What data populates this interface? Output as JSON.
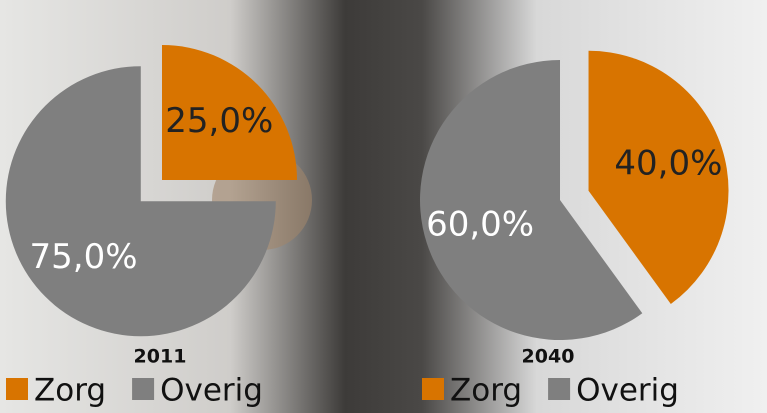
{
  "chart_data": [
    {
      "type": "pie",
      "title": "2011",
      "categories": [
        "Zorg",
        "Overig"
      ],
      "values": [
        25,
        75
      ],
      "value_labels": [
        "25,0%",
        "75,0%"
      ],
      "colors": [
        "#d87400",
        "#7f7f7f"
      ]
    },
    {
      "type": "pie",
      "title": "2040",
      "categories": [
        "Zorg",
        "Overig"
      ],
      "values": [
        40,
        60
      ],
      "value_labels": [
        "40,0%",
        "60,0%"
      ],
      "colors": [
        "#d87400",
        "#7f7f7f"
      ]
    }
  ]
}
